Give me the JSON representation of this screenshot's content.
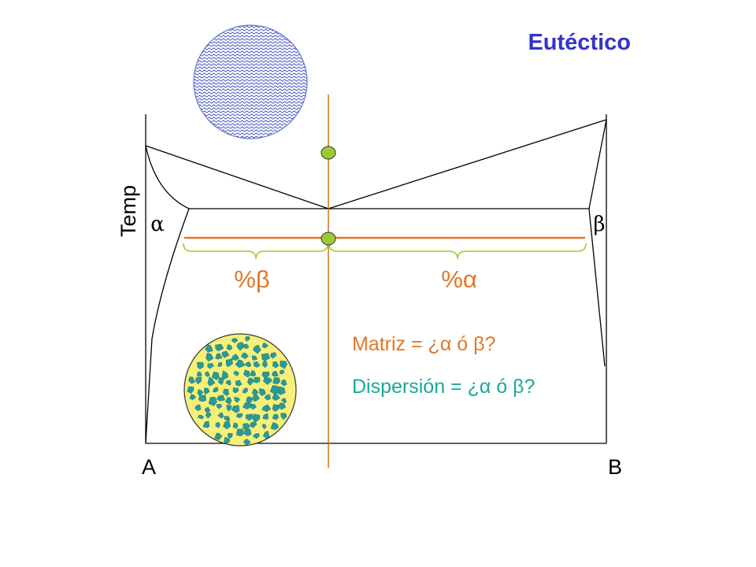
{
  "title": "Eutéctico",
  "axis": {
    "y_label": "Temp",
    "x_left": "A",
    "x_right": "B"
  },
  "phases": {
    "alpha": "α",
    "beta": "β"
  },
  "lever": {
    "left_label": "%β",
    "right_label": "%α"
  },
  "questions": {
    "matrix": "Matriz = ¿α ó β?",
    "dispersion": "Dispersión = ¿α ó β?"
  },
  "colors": {
    "title": "#3333cc",
    "axes": "#000000",
    "composition_line": "#cc6600",
    "tie_line": "#e07828",
    "node_fill": "#99cc33",
    "questions": "#e07828",
    "dispersion_text": "#1aa89a",
    "liquid_pattern": "#3344bb",
    "matrix_fill": "#f6f07a",
    "particle_fill": "#2a9a98"
  },
  "icons": {
    "liquid_microstructure": "liquid-circle-icon",
    "solid_microstructure": "dispersion-circle-icon"
  }
}
